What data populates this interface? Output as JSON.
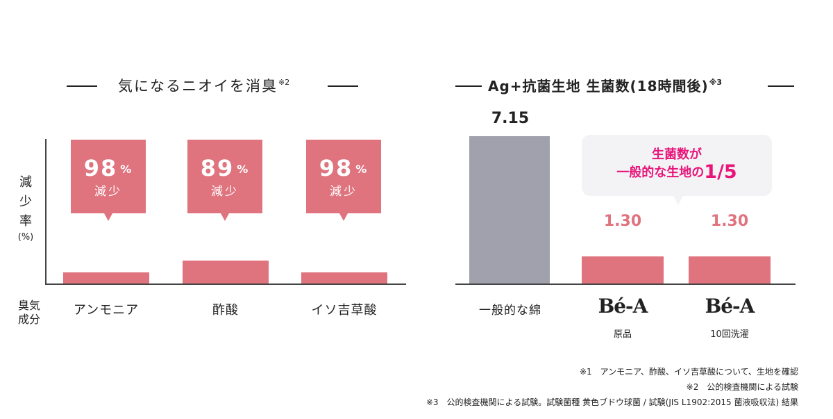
{
  "chart_data": [
    {
      "type": "bar",
      "title": "気になるニオイを消臭",
      "title_note": "※2",
      "ylabel": [
        "減",
        "少",
        "率"
      ],
      "yunit": "(%)",
      "xlabel": [
        "臭気",
        "成分"
      ],
      "categories": [
        "アンモニア",
        "酢酸",
        "イソ吉草酸"
      ],
      "values": [
        98,
        89,
        98
      ],
      "value_unit": "%",
      "value_suffix": "減少",
      "colors": {
        "bar": "#df737e"
      }
    },
    {
      "type": "bar",
      "title": "Ag+抗菌生地 生菌数(18時間後)",
      "title_note": "※3",
      "categories": [
        "一般的な綿",
        "Bé-A",
        "Bé-A"
      ],
      "category_subs": [
        "",
        "原品",
        "10回洗濯"
      ],
      "values": [
        7.15,
        1.3,
        1.3
      ],
      "value_labels": [
        "7.15",
        "1.30",
        "1.30"
      ],
      "ylim": [
        0,
        7.15
      ],
      "colors": {
        "bar": "#df737e",
        "reference_bar": "#a0a1ac",
        "value_label": "#df737e",
        "emphasis": "#e8147a"
      },
      "annotation": {
        "line1": "生菌数が",
        "line2_prefix": "一般的な生地の",
        "line2_value": "1/5"
      }
    }
  ],
  "footnotes": [
    "※1　アンモニア、酢酸、イソ吉草酸について、生地を確認",
    "※2　公的検査機関による試験",
    "※3　公的検査機関による試験。試験菌種 黄色ブドウ球菌 / 試験(JIS L1902:2015 菌液吸収法) 結果"
  ]
}
